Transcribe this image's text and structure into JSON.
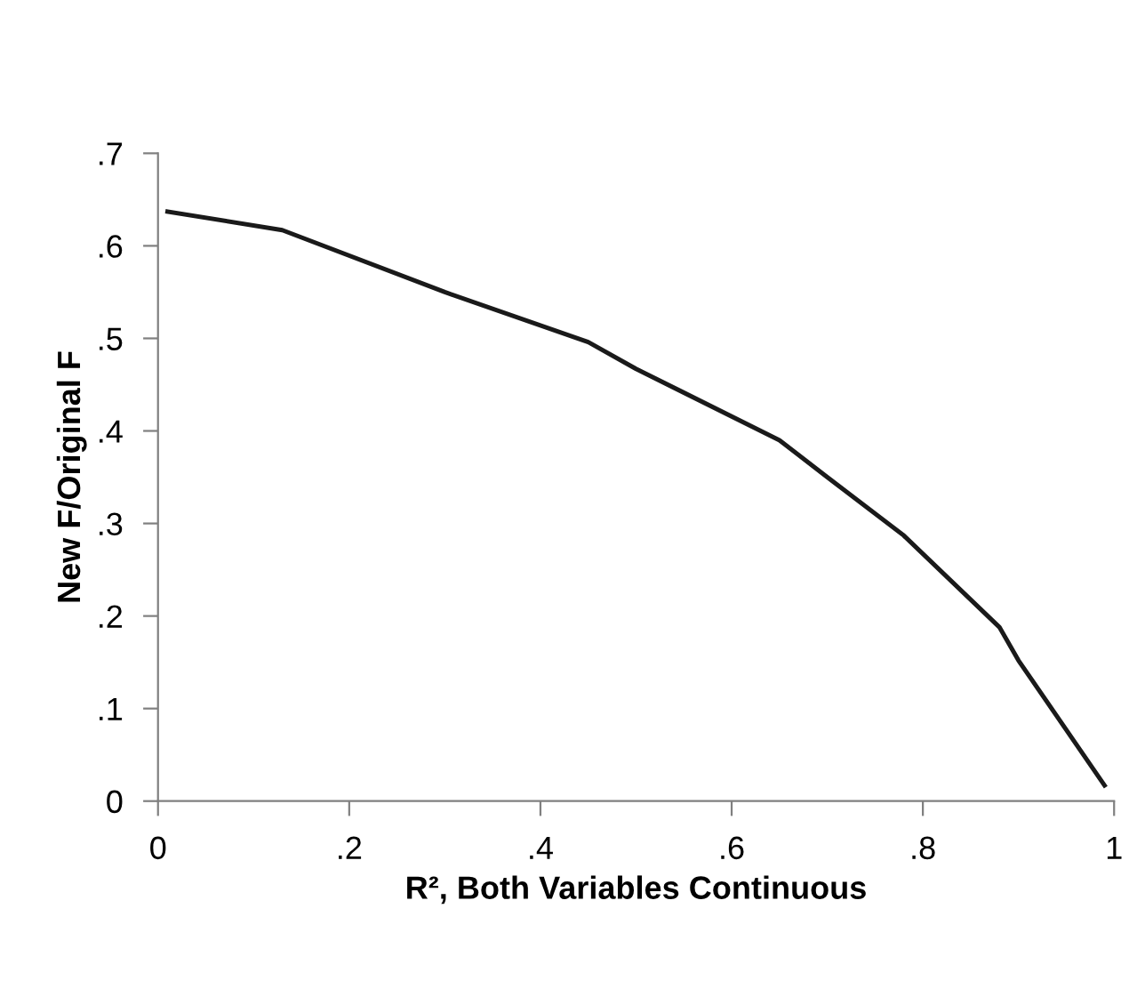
{
  "chart_data": {
    "type": "line",
    "xlabel": "R², Both Variables Continuous",
    "ylabel": "New F/Original F",
    "x": [
      0.01,
      0.13,
      0.3,
      0.45,
      0.5,
      0.65,
      0.7,
      0.78,
      0.88,
      0.9,
      0.99
    ],
    "series": [
      {
        "color": "#1a1a1a",
        "values": [
          0.637,
          0.617,
          0.55,
          0.496,
          0.467,
          0.39,
          0.35,
          0.287,
          0.188,
          0.152,
          0.017
        ]
      }
    ],
    "xlim": [
      0,
      1
    ],
    "ylim": [
      0,
      0.7
    ],
    "xticks": [
      0,
      {
        "value": 0.2,
        "label": ".2"
      },
      {
        "value": 0.4,
        "label": ".4"
      },
      {
        "value": 0.6,
        "label": ".6"
      },
      {
        "value": 0.8,
        "label": ".8"
      },
      1
    ],
    "yticks": [
      0,
      {
        "value": 0.1,
        "label": ".1"
      },
      {
        "value": 0.2,
        "label": ".2"
      },
      {
        "value": 0.3,
        "label": ".3"
      },
      {
        "value": 0.4,
        "label": ".4"
      },
      {
        "value": 0.5,
        "label": ".5"
      },
      {
        "value": 0.6,
        "label": ".6"
      },
      {
        "value": 0.7,
        "label": ".7"
      }
    ],
    "grid": false,
    "marker": "none",
    "line_style": "solid"
  }
}
